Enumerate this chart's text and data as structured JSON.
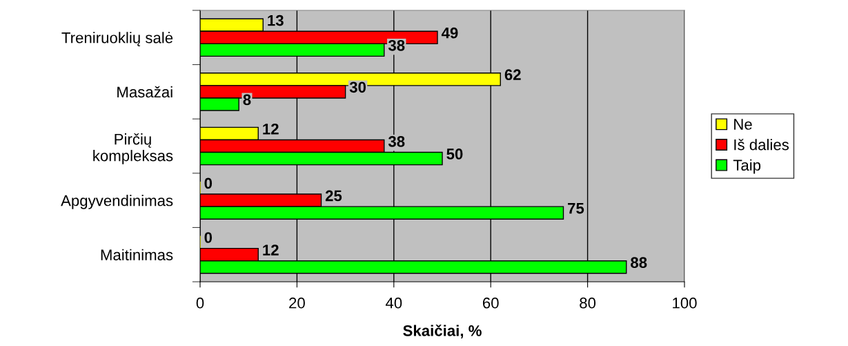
{
  "chart_data": {
    "type": "bar",
    "orientation": "horizontal",
    "xlabel": "Skaičiai, %",
    "categories": [
      "Treniruoklių salė",
      "Masažai",
      "Pirčių\nkompleksas",
      "Apgyvendinimas",
      "Maitinimas"
    ],
    "series": [
      {
        "name": "Ne",
        "color": "#ffff00",
        "values": [
          13,
          62,
          12,
          0,
          0
        ]
      },
      {
        "name": "Iš dalies",
        "color": "#ff0000",
        "values": [
          49,
          30,
          38,
          25,
          12
        ]
      },
      {
        "name": "Taip",
        "color": "#00ff00",
        "values": [
          38,
          8,
          50,
          75,
          88
        ]
      }
    ],
    "xlim": [
      0,
      100
    ],
    "xticks": [
      0,
      20,
      40,
      60,
      80,
      100
    ],
    "grid": "x",
    "legend": "right",
    "data_labels": true
  }
}
